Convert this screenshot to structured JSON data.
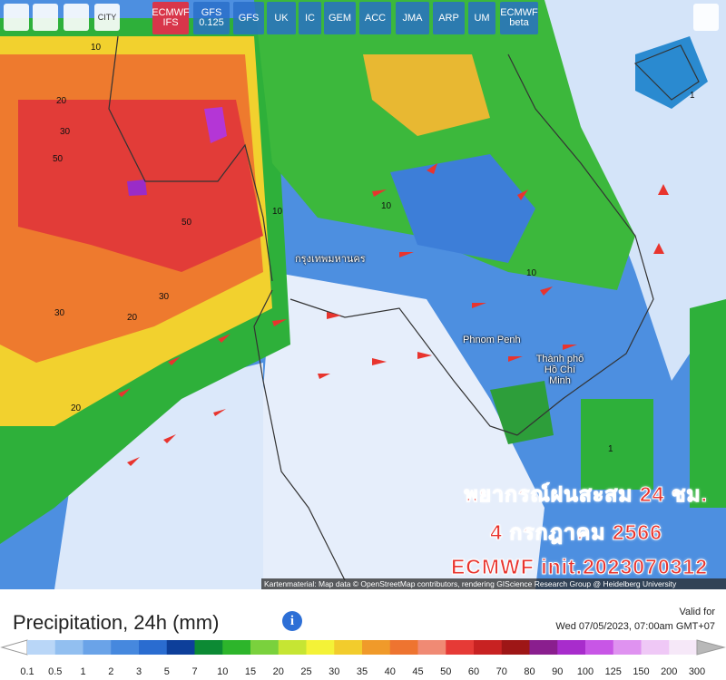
{
  "toolbar": {
    "city_button": "CITY",
    "models": [
      "ECMWF IFS",
      "GFS 0.125",
      "GFS",
      "UK",
      "IC",
      "GEM",
      "ACC",
      "JMA",
      "ARP",
      "UM",
      "ECMWF beta"
    ],
    "active_model": "ECMWF IFS"
  },
  "map": {
    "places": [
      "กรุงเทพมหานคร",
      "Phnom Penh",
      "Thành phố Hồ Chí Minh"
    ],
    "contour_labels": [
      "10",
      "20",
      "30",
      "50",
      "50",
      "30",
      "20",
      "10",
      "30",
      "20",
      "10",
      "1",
      "1",
      "10"
    ],
    "overlay": {
      "line1": "พยากรณ์ฝนสะสม 24 ชม.",
      "line2": "4 กรกฎาคม 2566",
      "line3": "ECMWF init.2023070312"
    },
    "attribution": "Kartenmaterial: Map data © OpenStreetMap contributors, rendering GIScience Research Group @ Heidelberg University"
  },
  "footer": {
    "title": "Precipitation, 24h (mm)",
    "valid_label": "Valid for",
    "valid_time": "Wed 07/05/2023, 07:00am GMT+07"
  },
  "legend": {
    "labels": [
      "0.1",
      "0.5",
      "1",
      "2",
      "3",
      "5",
      "7",
      "10",
      "15",
      "20",
      "25",
      "30",
      "35",
      "40",
      "45",
      "50",
      "60",
      "70",
      "80",
      "90",
      "100",
      "125",
      "150",
      "200",
      "300"
    ],
    "colors": [
      "#b9d6f7",
      "#92bff0",
      "#6aa3e8",
      "#4688de",
      "#2a6cd0",
      "#0d3f9a",
      "#0c8a34",
      "#2db52b",
      "#7ad13d",
      "#c6e533",
      "#f4f237",
      "#f2cc2c",
      "#f09a2a",
      "#ee7430",
      "#f08a74",
      "#e63a36",
      "#c82222",
      "#9e1616",
      "#8a1e8e",
      "#a82ccc",
      "#c856e6",
      "#df92f0",
      "#efc8f6",
      "#f6e8f8"
    ],
    "under_color": "#ffffff",
    "over_color": "#b8b8b8"
  }
}
